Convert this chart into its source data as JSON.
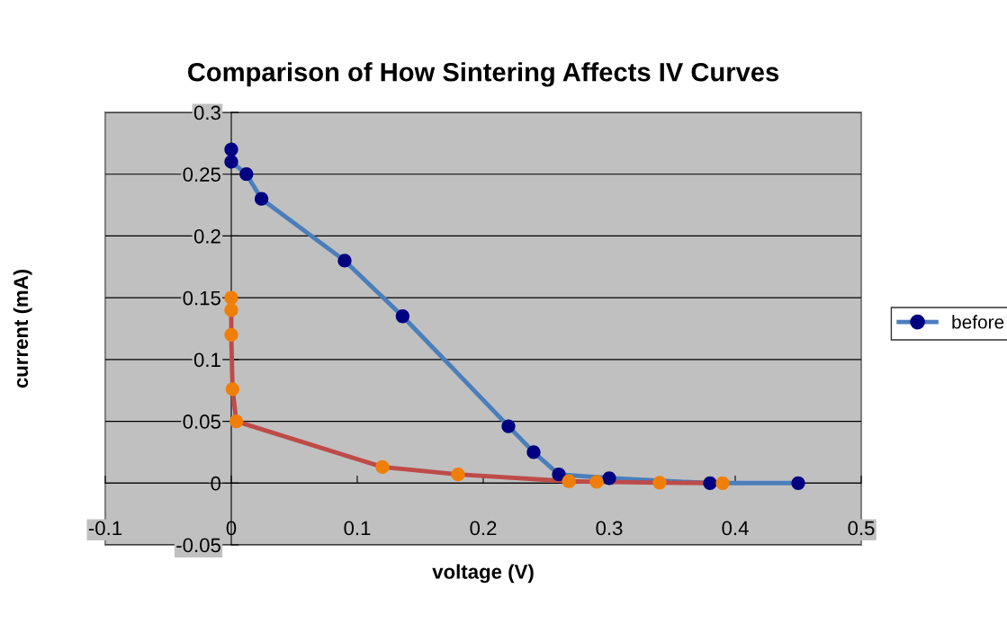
{
  "chart_data": {
    "type": "line",
    "title": "Comparison of How Sintering Affects IV Curves",
    "xlabel": "voltage (V)",
    "ylabel": "current (mA)",
    "series": [
      {
        "name": "before",
        "color": "#4a7ebb",
        "colors": [
          "#000080",
          "#000080",
          "#000080",
          "#000080",
          "#000080",
          "#000080",
          "#000080",
          "#000080",
          "#000080",
          "#000080",
          "#000080",
          "#000080"
        ],
        "x": [
          0,
          0,
          0.012,
          0.024,
          0.09,
          0.136,
          0.22,
          0.24,
          0.26,
          0.3,
          0.38,
          0.45
        ],
        "values": [
          0.27,
          0.26,
          0.25,
          0.23,
          0.18,
          0.135,
          0.046,
          0.025,
          0.007,
          0.004,
          0,
          0
        ]
      },
      {
        "color": "#be4b48",
        "colors": [
          "#f07f09",
          "#f07f09",
          "#f07f09",
          "#f07f09",
          "#f07f09",
          "#f07f09",
          "#f07f09",
          "#f07f09",
          "#f07f09",
          "#f07f09",
          "#f07f09"
        ],
        "x": [
          0,
          0,
          0,
          0.001,
          0.004,
          0.12,
          0.18,
          0.268,
          0.29,
          0.34,
          0.39
        ],
        "values": [
          0.15,
          0.14,
          0.12,
          0.076,
          0.05,
          0.013,
          0.007,
          0.0015,
          0.001,
          0.0003,
          0
        ]
      }
    ],
    "xlim": [
      -0.1,
      0.5
    ],
    "xticks": [
      -0.1,
      0,
      0.1,
      0.2,
      0.3,
      0.4,
      0.5
    ],
    "ylim": [
      -0.05,
      0.3
    ],
    "yticks": [
      -0.05,
      0,
      0.05,
      0.1,
      0.15,
      0.2,
      0.25,
      0.3
    ],
    "grid": "y",
    "legend": "right",
    "marker": "circle",
    "line_style": "solid"
  }
}
